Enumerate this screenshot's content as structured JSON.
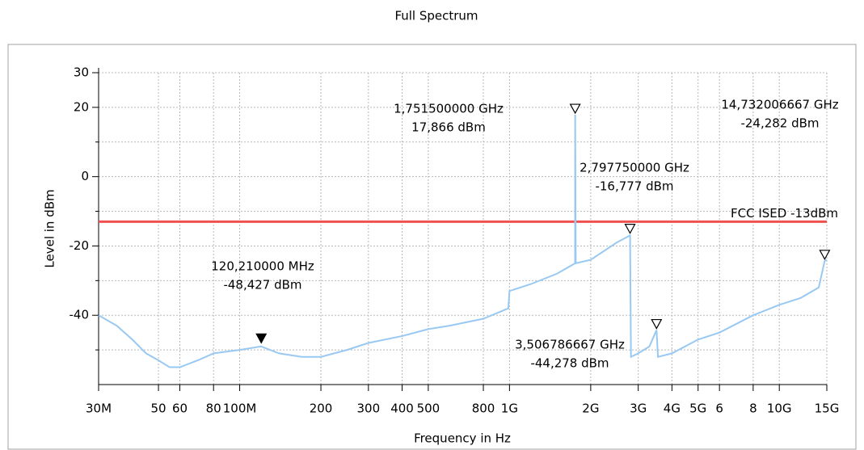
{
  "chart_data": {
    "type": "line",
    "title": "Full Spectrum",
    "x_label": "Frequency in Hz",
    "y_label": "Level in dBm",
    "xscale": "log",
    "grid": true,
    "xlim": [
      30000000,
      15000000000
    ],
    "ylim": [
      -60,
      30
    ],
    "yticks": [
      30,
      20,
      0,
      -20,
      -40
    ],
    "minor_yticks": [
      10,
      -10,
      -30,
      -50
    ],
    "xticks": [
      {
        "value": 30000000,
        "label": "30M"
      },
      {
        "value": 50000000,
        "label": "50"
      },
      {
        "value": 60000000,
        "label": "60"
      },
      {
        "value": 80000000,
        "label": "80"
      },
      {
        "value": 100000000,
        "label": "100M"
      },
      {
        "value": 200000000,
        "label": "200"
      },
      {
        "value": 300000000,
        "label": "300"
      },
      {
        "value": 400000000,
        "label": "400"
      },
      {
        "value": 500000000,
        "label": "500"
      },
      {
        "value": 800000000,
        "label": "800"
      },
      {
        "value": 1000000000,
        "label": "1G"
      },
      {
        "value": 2000000000,
        "label": "2G"
      },
      {
        "value": 3000000000,
        "label": "3G"
      },
      {
        "value": 4000000000,
        "label": "4G"
      },
      {
        "value": 5000000000,
        "label": "5G"
      },
      {
        "value": 6000000000,
        "label": "6"
      },
      {
        "value": 8000000000,
        "label": "8"
      },
      {
        "value": 10000000000,
        "label": "10G"
      },
      {
        "value": 15000000000,
        "label": "15G"
      }
    ],
    "series": [
      {
        "color": "#99c9f2",
        "x": [
          30000000,
          35000000,
          40000000,
          45000000,
          50000000,
          55000000,
          60000000,
          70000000,
          80000000,
          100000000,
          120000000,
          140000000,
          170000000,
          200000000,
          250000000,
          300000000,
          400000000,
          500000000,
          600000000,
          800000000,
          990000000,
          1000000000,
          1200000000,
          1500000000,
          1750000000,
          1751500000,
          1760000000,
          2000000000,
          2500000000,
          2790000000,
          2797750000,
          2820000000,
          3000000000,
          3300000000,
          3506786667,
          3550000000,
          4000000000,
          5000000000,
          6000000000,
          8000000000,
          10000000000,
          12000000000,
          14000000000,
          14732006667,
          15000000000
        ],
        "values": [
          -40,
          -43,
          -47,
          -51,
          -53,
          -55,
          -55,
          -53,
          -51,
          -50,
          -49,
          -51,
          -52,
          -52,
          -50,
          -48,
          -46,
          -44,
          -43,
          -41,
          -38,
          -33,
          -31,
          -28,
          -25,
          17.866,
          -25,
          -24,
          -19,
          -17,
          -16.777,
          -52,
          -51,
          -49,
          -44.278,
          -52,
          -51,
          -47,
          -45,
          -40,
          -37,
          -35,
          -32,
          -24.282,
          -24
        ]
      }
    ],
    "limit_line": {
      "name": "FCC ISED -13dBm",
      "value": -13,
      "color": "#f05050"
    },
    "markers": [
      {
        "x": 120210000,
        "y": -48.427,
        "x_label": "120,210000 MHz",
        "y_label": "-48,427 dBm",
        "filled": true
      },
      {
        "x": 1751500000,
        "y": 17.866,
        "x_label": "1,751500000 GHz",
        "y_label": "17,866 dBm",
        "filled": false
      },
      {
        "x": 2797750000,
        "y": -16.777,
        "x_label": "2,797750000 GHz",
        "y_label": "-16,777 dBm",
        "filled": false
      },
      {
        "x": 3506786667,
        "y": -44.278,
        "x_label": "3,506786667 GHz",
        "y_label": "-44,278 dBm",
        "filled": false
      },
      {
        "x": 14732006667,
        "y": -24.282,
        "x_label": "14,732006667 GHz",
        "y_label": "-24,282 dBm",
        "filled": false
      }
    ]
  }
}
